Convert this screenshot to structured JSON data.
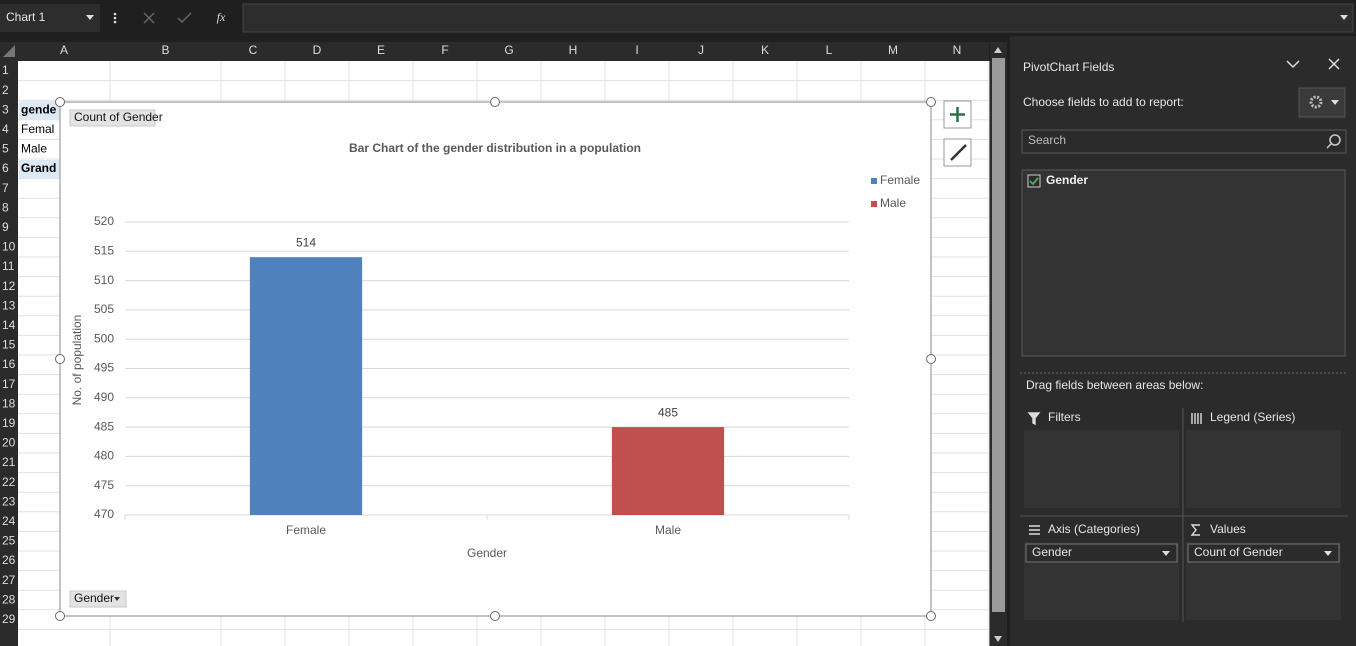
{
  "name_box": "Chart 1",
  "function_label": "fx",
  "column_headers": [
    "A",
    "B",
    "C",
    "D",
    "E",
    "F",
    "G",
    "H",
    "I",
    "J",
    "K",
    "L",
    "M",
    "N"
  ],
  "row_numbers": [
    1,
    2,
    3,
    4,
    5,
    6,
    7,
    8,
    9,
    10,
    11,
    12,
    13,
    14,
    15,
    16,
    17,
    18,
    19,
    20,
    21,
    22,
    23,
    24,
    25,
    26,
    27,
    28,
    29
  ],
  "column_a_cells": [
    "gende",
    "Femal",
    "Male",
    "Grand"
  ],
  "field_buttons": {
    "values": "Count of Gender",
    "axis": "Gender"
  },
  "chart_data": {
    "type": "bar",
    "title": "Bar Chart of the gender distribution in a population",
    "x_label": "Gender",
    "y_label": "No. of population",
    "categories": [
      "Female",
      "Male"
    ],
    "series": [
      {
        "name": "Female",
        "color": "#4f81bd",
        "values": [
          514,
          null
        ]
      },
      {
        "name": "Male",
        "color": "#c0504d",
        "values": [
          null,
          485
        ]
      }
    ],
    "ylim": [
      470,
      520
    ],
    "yticks": [
      470,
      475,
      480,
      485,
      490,
      495,
      500,
      505,
      510,
      515,
      520
    ],
    "grid": true,
    "legend": "right",
    "data_labels": true
  },
  "panel": {
    "title": "PivotChart Fields",
    "subtitle": "Choose fields to add to report:",
    "search": "Search",
    "fields": [
      {
        "name": "Gender",
        "checked": true
      }
    ],
    "drag_hint": "Drag fields between areas below:",
    "areas": {
      "filters": {
        "label": "Filters",
        "items": []
      },
      "legend": {
        "label": "Legend (Series)",
        "items": []
      },
      "axis": {
        "label": "Axis (Categories)",
        "items": [
          "Gender"
        ]
      },
      "values": {
        "label": "Values",
        "items": [
          "Count of Gender"
        ]
      }
    }
  }
}
